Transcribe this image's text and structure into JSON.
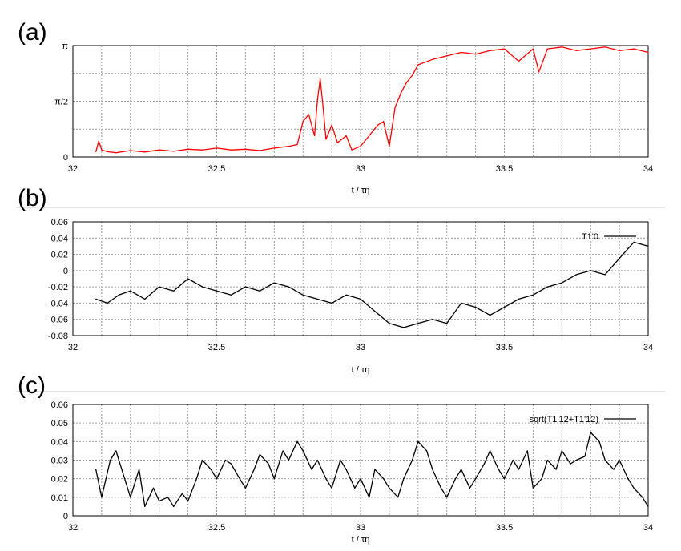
{
  "panels": [
    {
      "label": "(a)",
      "chart_data": {
        "type": "line",
        "xlabel": "t / τη",
        "xlim": [
          32,
          34
        ],
        "x_ticks": [
          "32",
          "32.5",
          "33",
          "33.5",
          "34"
        ],
        "ylim": [
          0,
          3.14159
        ],
        "y_ticks": [
          "0",
          "π/2",
          "π"
        ],
        "y_tick_values": [
          0,
          1.5708,
          3.14159
        ],
        "grid": true,
        "legend": "",
        "series": [
          {
            "color": "#ff0000",
            "x": [
              32.08,
              32.09,
              32.1,
              32.12,
              32.15,
              32.2,
              32.25,
              32.3,
              32.35,
              32.4,
              32.45,
              32.5,
              32.55,
              32.6,
              32.65,
              32.7,
              32.75,
              32.78,
              32.8,
              32.82,
              32.84,
              32.85,
              32.86,
              32.87,
              32.88,
              32.9,
              32.92,
              32.95,
              32.97,
              33.0,
              33.02,
              33.04,
              33.06,
              33.08,
              33.1,
              33.12,
              33.14,
              33.16,
              33.18,
              33.2,
              33.25,
              33.3,
              33.35,
              33.4,
              33.45,
              33.5,
              33.55,
              33.6,
              33.62,
              33.65,
              33.7,
              33.75,
              33.8,
              33.85,
              33.9,
              33.95,
              34.0
            ],
            "y": [
              0.15,
              0.45,
              0.2,
              0.15,
              0.12,
              0.18,
              0.14,
              0.2,
              0.16,
              0.22,
              0.2,
              0.25,
              0.2,
              0.22,
              0.18,
              0.25,
              0.3,
              0.35,
              1.0,
              1.2,
              0.6,
              1.6,
              2.2,
              1.4,
              0.5,
              0.9,
              0.4,
              0.6,
              0.2,
              0.3,
              0.5,
              0.7,
              0.9,
              1.0,
              0.3,
              1.4,
              1.8,
              2.1,
              2.3,
              2.6,
              2.75,
              2.85,
              2.95,
              2.9,
              3.0,
              3.05,
              2.7,
              3.05,
              2.4,
              3.05,
              3.1,
              3.0,
              3.05,
              3.1,
              3.0,
              3.05,
              2.95
            ]
          }
        ]
      }
    },
    {
      "label": "(b)",
      "chart_data": {
        "type": "line",
        "xlabel": "t / τη",
        "xlim": [
          32,
          34
        ],
        "x_ticks": [
          "32",
          "32.5",
          "33",
          "33.5",
          "34"
        ],
        "ylim": [
          -0.08,
          0.06
        ],
        "y_ticks": [
          "-0.08",
          "-0.06",
          "-0.04",
          "-0.02",
          "0",
          "0.02",
          "0.04",
          "0.06"
        ],
        "y_tick_values": [
          -0.08,
          -0.06,
          -0.04,
          -0.02,
          0,
          0.02,
          0.04,
          0.06
        ],
        "grid": true,
        "legend": "top-right",
        "series": [
          {
            "name": "T1'0",
            "color": "#000000",
            "x": [
              32.08,
              32.12,
              32.16,
              32.2,
              32.25,
              32.3,
              32.35,
              32.4,
              32.45,
              32.5,
              32.55,
              32.6,
              32.65,
              32.7,
              32.75,
              32.8,
              32.85,
              32.9,
              32.95,
              33.0,
              33.05,
              33.1,
              33.15,
              33.2,
              33.25,
              33.3,
              33.35,
              33.4,
              33.45,
              33.5,
              33.55,
              33.6,
              33.65,
              33.7,
              33.75,
              33.8,
              33.85,
              33.9,
              33.95,
              34.0
            ],
            "y": [
              -0.035,
              -0.04,
              -0.03,
              -0.025,
              -0.035,
              -0.02,
              -0.025,
              -0.01,
              -0.02,
              -0.025,
              -0.03,
              -0.02,
              -0.025,
              -0.015,
              -0.02,
              -0.03,
              -0.035,
              -0.04,
              -0.03,
              -0.035,
              -0.05,
              -0.065,
              -0.07,
              -0.065,
              -0.06,
              -0.065,
              -0.04,
              -0.045,
              -0.055,
              -0.045,
              -0.035,
              -0.03,
              -0.02,
              -0.015,
              -0.005,
              0.0,
              -0.005,
              0.015,
              0.035,
              0.03
            ]
          }
        ]
      }
    },
    {
      "label": "(c)",
      "chart_data": {
        "type": "line",
        "xlabel": "t / τη",
        "xlim": [
          32,
          34
        ],
        "x_ticks": [
          "32",
          "32.5",
          "33",
          "33.5",
          "34"
        ],
        "ylim": [
          0,
          0.06
        ],
        "y_ticks": [
          "0",
          "0.01",
          "0.02",
          "0.03",
          "0.04",
          "0.05",
          "0.06"
        ],
        "y_tick_values": [
          0,
          0.01,
          0.02,
          0.03,
          0.04,
          0.05,
          0.06
        ],
        "grid": true,
        "legend": "top-right",
        "series": [
          {
            "name": "sqrt(T1'12+T1'12)",
            "color": "#000000",
            "x": [
              32.08,
              32.1,
              32.13,
              32.15,
              32.18,
              32.2,
              32.23,
              32.25,
              32.28,
              32.3,
              32.33,
              32.35,
              32.38,
              32.4,
              32.43,
              32.45,
              32.48,
              32.5,
              32.53,
              32.55,
              32.58,
              32.6,
              32.63,
              32.65,
              32.68,
              32.7,
              32.73,
              32.75,
              32.78,
              32.8,
              32.83,
              32.85,
              32.88,
              32.9,
              32.93,
              32.95,
              32.98,
              33.0,
              33.03,
              33.05,
              33.08,
              33.1,
              33.13,
              33.15,
              33.18,
              33.2,
              33.23,
              33.25,
              33.28,
              33.3,
              33.33,
              33.35,
              33.38,
              33.4,
              33.43,
              33.45,
              33.48,
              33.5,
              33.53,
              33.55,
              33.58,
              33.6,
              33.63,
              33.65,
              33.68,
              33.7,
              33.73,
              33.75,
              33.78,
              33.8,
              33.83,
              33.85,
              33.88,
              33.9,
              33.93,
              33.95,
              33.98,
              34.0
            ],
            "y": [
              0.025,
              0.01,
              0.03,
              0.035,
              0.02,
              0.01,
              0.025,
              0.005,
              0.015,
              0.008,
              0.01,
              0.005,
              0.012,
              0.008,
              0.02,
              0.03,
              0.025,
              0.02,
              0.03,
              0.028,
              0.02,
              0.015,
              0.025,
              0.033,
              0.028,
              0.02,
              0.035,
              0.03,
              0.04,
              0.035,
              0.025,
              0.03,
              0.02,
              0.015,
              0.03,
              0.025,
              0.015,
              0.02,
              0.01,
              0.025,
              0.02,
              0.015,
              0.01,
              0.02,
              0.03,
              0.04,
              0.035,
              0.025,
              0.015,
              0.01,
              0.02,
              0.025,
              0.015,
              0.02,
              0.028,
              0.035,
              0.025,
              0.02,
              0.03,
              0.025,
              0.035,
              0.015,
              0.02,
              0.03,
              0.025,
              0.035,
              0.028,
              0.03,
              0.032,
              0.045,
              0.04,
              0.03,
              0.025,
              0.03,
              0.02,
              0.015,
              0.01,
              0.005
            ]
          }
        ]
      }
    }
  ]
}
